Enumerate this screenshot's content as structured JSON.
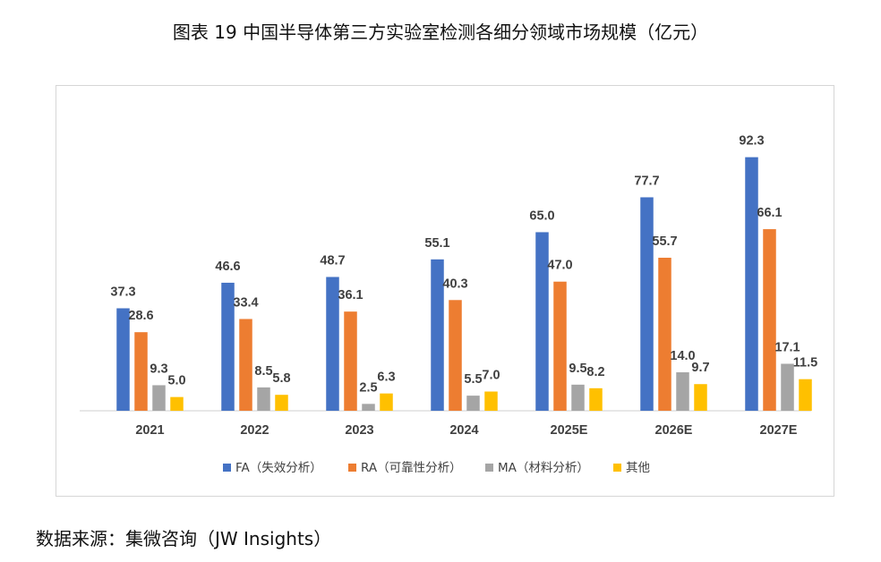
{
  "title": "图表 19  中国半导体第三方实验室检测各细分领域市场规模（亿元）",
  "source": "数据来源：集微咨询（JW Insights）",
  "chart_data": {
    "type": "bar",
    "categories": [
      "2021",
      "2022",
      "2023",
      "2024",
      "2025E",
      "2026E",
      "2027E"
    ],
    "series": [
      {
        "name": "FA（失效分析）",
        "color": "#4472C4",
        "values": [
          37.3,
          46.6,
          48.7,
          55.1,
          65.0,
          77.7,
          92.3
        ]
      },
      {
        "name": "RA（可靠性分析）",
        "color": "#ED7D31",
        "values": [
          28.6,
          33.4,
          36.1,
          40.3,
          47.0,
          55.7,
          66.1
        ]
      },
      {
        "name": "MA（材料分析）",
        "color": "#A5A5A5",
        "values": [
          9.3,
          8.5,
          2.5,
          5.5,
          9.5,
          14.0,
          17.1
        ]
      },
      {
        "name": "其他",
        "color": "#FFC000",
        "values": [
          5.0,
          5.8,
          6.3,
          7.0,
          8.2,
          9.7,
          11.5
        ]
      }
    ],
    "ylim": [
      0,
      100
    ],
    "grid": false,
    "legend_position": "bottom",
    "data_labels": true
  }
}
